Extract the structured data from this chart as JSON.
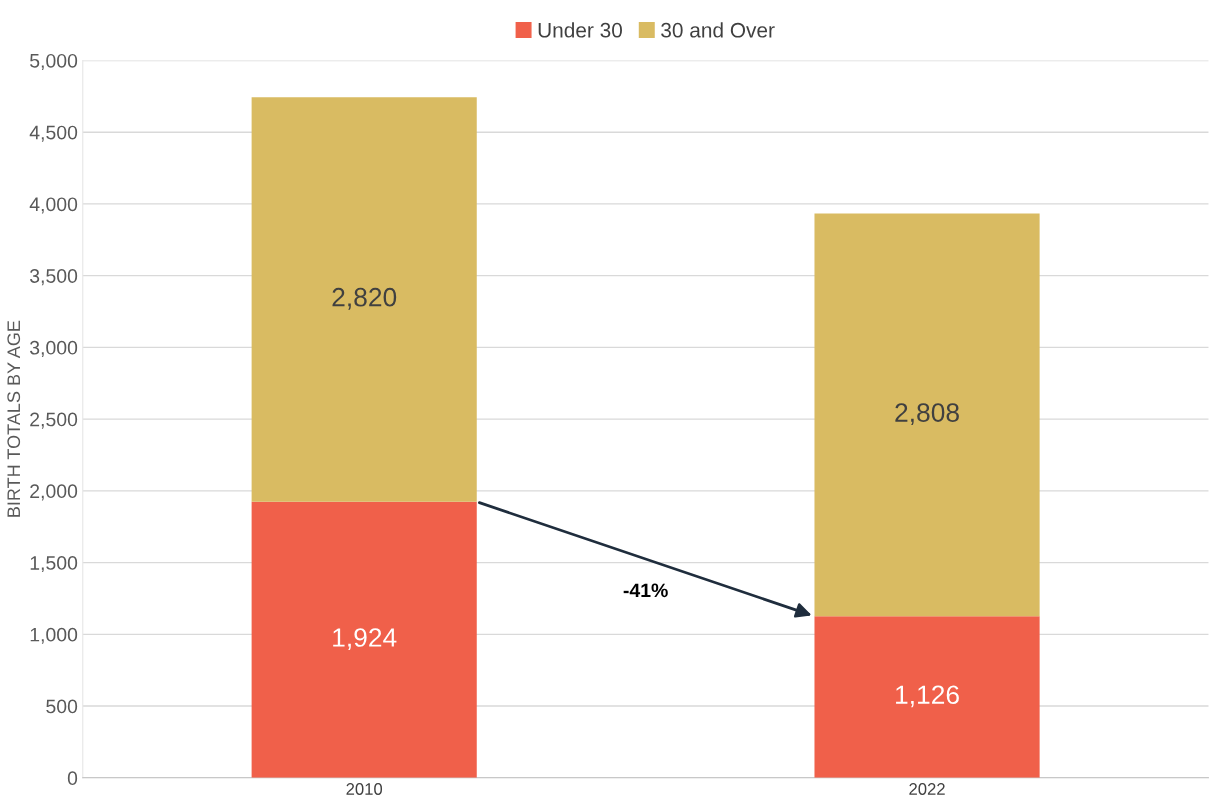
{
  "chart_data": {
    "type": "bar",
    "stacked": true,
    "categories": [
      "2010",
      "2022"
    ],
    "ylabel": "BIRTH TOTALS BY AGE",
    "series": [
      {
        "name": "Under 30",
        "color": "#f0604a",
        "values": [
          1924,
          1126
        ],
        "value_labels": [
          "1,924",
          "1,126"
        ]
      },
      {
        "name": "30 and Over",
        "color": "#d9bb62",
        "values": [
          2820,
          2808
        ],
        "value_labels": [
          "2,820",
          "2,808"
        ]
      }
    ],
    "ylim": [
      0,
      5000
    ],
    "yticks": [
      0,
      500,
      {
        "value": 1000,
        "label": "1,000"
      },
      {
        "value": 1500,
        "label": "1,500"
      },
      {
        "value": 2000,
        "label": "2,000"
      },
      {
        "value": 2500,
        "label": "2,500"
      },
      {
        "value": 3000,
        "label": "3,000"
      },
      {
        "value": 3500,
        "label": "3,500"
      },
      {
        "value": 4000,
        "label": "4,000"
      },
      {
        "value": 4500,
        "label": "4,500"
      },
      {
        "value": 5000,
        "label": "5,000"
      }
    ],
    "grid": "y",
    "legend": "top",
    "annotations": [
      "-41%"
    ]
  }
}
